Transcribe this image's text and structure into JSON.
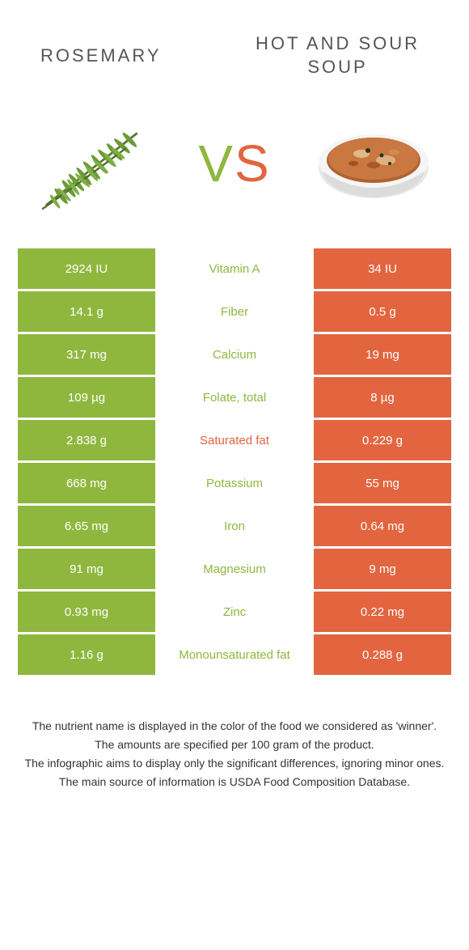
{
  "header": {
    "left_title": "Rosemary",
    "right_title": "Hot and Sour Soup"
  },
  "vs": {
    "v": "V",
    "s": "S"
  },
  "colors": {
    "green": "#8fb73e",
    "orange": "#e2653f",
    "bg": "#ffffff",
    "text": "#333333"
  },
  "rows": [
    {
      "left": "2924 IU",
      "mid": "Vitamin A",
      "right": "34 IU",
      "mid_color": "green"
    },
    {
      "left": "14.1 g",
      "mid": "Fiber",
      "right": "0.5 g",
      "mid_color": "green"
    },
    {
      "left": "317 mg",
      "mid": "Calcium",
      "right": "19 mg",
      "mid_color": "green"
    },
    {
      "left": "109 µg",
      "mid": "Folate, total",
      "right": "8 µg",
      "mid_color": "green"
    },
    {
      "left": "2.838 g",
      "mid": "Saturated fat",
      "right": "0.229 g",
      "mid_color": "orange"
    },
    {
      "left": "668 mg",
      "mid": "Potassium",
      "right": "55 mg",
      "mid_color": "green"
    },
    {
      "left": "6.65 mg",
      "mid": "Iron",
      "right": "0.64 mg",
      "mid_color": "green"
    },
    {
      "left": "91 mg",
      "mid": "Magnesium",
      "right": "9 mg",
      "mid_color": "green"
    },
    {
      "left": "0.93 mg",
      "mid": "Zinc",
      "right": "0.22 mg",
      "mid_color": "green"
    },
    {
      "left": "1.16 g",
      "mid": "Monounsaturated fat",
      "right": "0.288 g",
      "mid_color": "green"
    }
  ],
  "footer": {
    "line1": "The nutrient name is displayed in the color of the food we considered as 'winner'.",
    "line2": "The amounts are specified per 100 gram of the product.",
    "line3": "The infographic aims to display only the significant differences, ignoring minor ones.",
    "line4": "The main source of information is USDA Food Composition Database."
  }
}
